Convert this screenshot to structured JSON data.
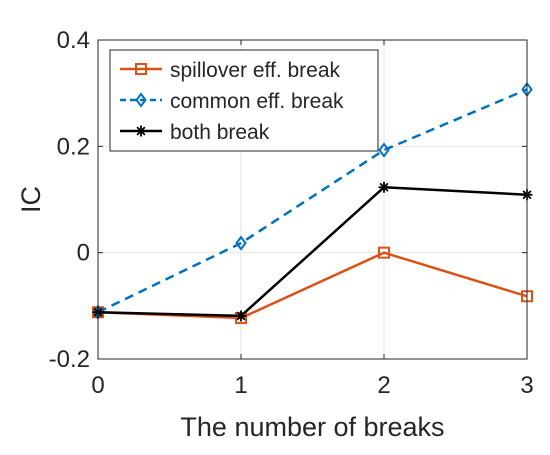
{
  "chart_data": {
    "type": "line",
    "x": [
      0,
      1,
      2,
      3
    ],
    "xlabel": "The number of breaks",
    "ylabel": "IC",
    "xlim": [
      0,
      3
    ],
    "ylim": [
      -0.2,
      0.4
    ],
    "xticks": [
      "0",
      "1",
      "2",
      "3"
    ],
    "yticks": [
      "-0.2",
      "0",
      "0.2",
      "0.4"
    ],
    "grid": true,
    "legend_position": "top-left",
    "series": [
      {
        "name": "spillover eff. break",
        "values": [
          -0.112,
          -0.123,
          0.0,
          -0.082
        ],
        "color": "#d95319",
        "line_style": "solid",
        "marker": "square"
      },
      {
        "name": "common eff. break",
        "values": [
          -0.112,
          0.018,
          0.193,
          0.307
        ],
        "color": "#0072bd",
        "line_style": "dashed",
        "marker": "diamond"
      },
      {
        "name": "both break",
        "values": [
          -0.112,
          -0.119,
          0.123,
          0.109
        ],
        "color": "#000000",
        "line_style": "solid",
        "marker": "asterisk"
      }
    ]
  }
}
